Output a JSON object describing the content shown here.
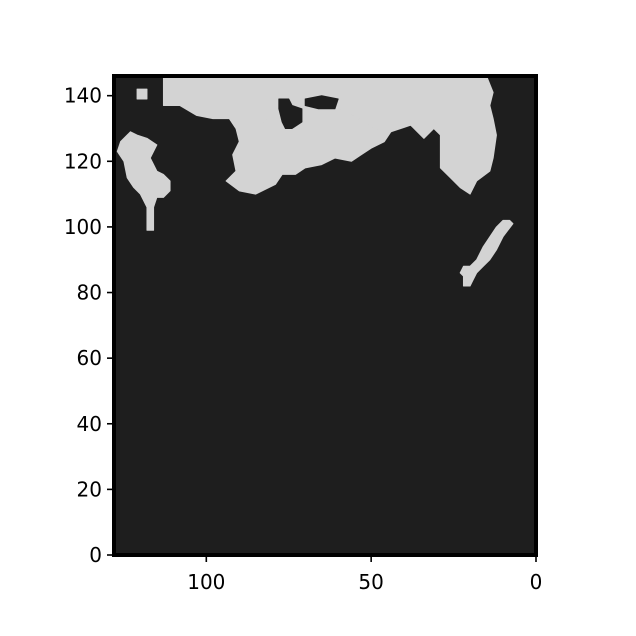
{
  "chart_data": {
    "type": "heatmap",
    "title": "",
    "xlabel": "",
    "ylabel": "",
    "xlim": [
      128,
      0
    ],
    "ylim": [
      0,
      146
    ],
    "x_ticks": [
      100,
      50,
      0
    ],
    "y_ticks": [
      0,
      20,
      40,
      60,
      80,
      100,
      120,
      140
    ],
    "x_tick_labels": [
      "100",
      "50",
      "0"
    ],
    "y_tick_labels": [
      "0",
      "20",
      "40",
      "60",
      "80",
      "100",
      "120",
      "140"
    ],
    "binary_classes": [
      "background",
      "foreground"
    ],
    "colors": {
      "background": "#1e1e1e",
      "foreground": "#d3d3d3",
      "frame": "#000000"
    },
    "regions": [
      {
        "class": "foreground",
        "polygon": [
          [
            113,
            146
          ],
          [
            113,
            137
          ],
          [
            108,
            137
          ],
          [
            103,
            134
          ],
          [
            98,
            133
          ],
          [
            93,
            133
          ],
          [
            91,
            130
          ],
          [
            85,
            130
          ],
          [
            83,
            131
          ],
          [
            80,
            136
          ],
          [
            73,
            136
          ],
          [
            66,
            138
          ],
          [
            61,
            138
          ],
          [
            60,
            136
          ],
          [
            52,
            132
          ],
          [
            49,
            130
          ],
          [
            44,
            129
          ],
          [
            38,
            131
          ],
          [
            34,
            127
          ],
          [
            31,
            130
          ],
          [
            29,
            128
          ],
          [
            29,
            118
          ],
          [
            26,
            115
          ],
          [
            23,
            112
          ],
          [
            20,
            110
          ],
          [
            18,
            114
          ],
          [
            14,
            117
          ],
          [
            13,
            121
          ],
          [
            12,
            128
          ],
          [
            13,
            133
          ],
          [
            14,
            137
          ],
          [
            13,
            141
          ],
          [
            15,
            146
          ]
        ]
      },
      {
        "class": "foreground",
        "polygon": [
          [
            93,
            133
          ],
          [
            91,
            130
          ],
          [
            90,
            126
          ],
          [
            92,
            122
          ],
          [
            91,
            117
          ],
          [
            94,
            114
          ],
          [
            90,
            111
          ],
          [
            85,
            110
          ],
          [
            83,
            111
          ],
          [
            79,
            113
          ],
          [
            77,
            116
          ],
          [
            73,
            116
          ],
          [
            70,
            118
          ],
          [
            65,
            119
          ],
          [
            61,
            121
          ],
          [
            56,
            120
          ],
          [
            53,
            122
          ],
          [
            50,
            124
          ],
          [
            46,
            126
          ],
          [
            44,
            129
          ],
          [
            49,
            130
          ],
          [
            52,
            132
          ],
          [
            60,
            136
          ],
          [
            61,
            138
          ],
          [
            66,
            138
          ],
          [
            73,
            136
          ],
          [
            80,
            136
          ],
          [
            83,
            131
          ],
          [
            85,
            130
          ]
        ]
      },
      {
        "class": "background",
        "polygon": [
          [
            78,
            139
          ],
          [
            75,
            139
          ],
          [
            74,
            137
          ],
          [
            71,
            136
          ],
          [
            71,
            132
          ],
          [
            74,
            130
          ],
          [
            76,
            130
          ],
          [
            77,
            132
          ],
          [
            78,
            136
          ]
        ]
      },
      {
        "class": "background",
        "polygon": [
          [
            70,
            139
          ],
          [
            65,
            140
          ],
          [
            60,
            139
          ],
          [
            61,
            136
          ],
          [
            66,
            136
          ],
          [
            70,
            137
          ]
        ]
      },
      {
        "class": "foreground",
        "polygon": [
          [
            123,
            129
          ],
          [
            121,
            128
          ],
          [
            118,
            127
          ],
          [
            115,
            125
          ],
          [
            117,
            121
          ],
          [
            115,
            117
          ],
          [
            113,
            116
          ],
          [
            111,
            114
          ],
          [
            111,
            111
          ],
          [
            113,
            109
          ],
          [
            115,
            109
          ],
          [
            116,
            106
          ],
          [
            116,
            99
          ],
          [
            118,
            99
          ],
          [
            118,
            106
          ],
          [
            120,
            110
          ],
          [
            122,
            112
          ],
          [
            124,
            115
          ],
          [
            125,
            120
          ],
          [
            127,
            123
          ],
          [
            126,
            126
          ]
        ]
      },
      {
        "class": "foreground",
        "polygon": [
          [
            121,
            142
          ],
          [
            118,
            142
          ],
          [
            118,
            139
          ],
          [
            121,
            139
          ]
        ]
      },
      {
        "class": "foreground",
        "polygon": [
          [
            7,
            101
          ],
          [
            10,
            97
          ],
          [
            12,
            93
          ],
          [
            14,
            90
          ],
          [
            16,
            88
          ],
          [
            18,
            86
          ],
          [
            19,
            84
          ],
          [
            20,
            82
          ],
          [
            22,
            82
          ],
          [
            22,
            85
          ],
          [
            23,
            86
          ],
          [
            22,
            88
          ],
          [
            20,
            88
          ],
          [
            18,
            90
          ],
          [
            16,
            94
          ],
          [
            14,
            97
          ],
          [
            12,
            100
          ],
          [
            10,
            102
          ],
          [
            8,
            102
          ]
        ]
      }
    ]
  }
}
